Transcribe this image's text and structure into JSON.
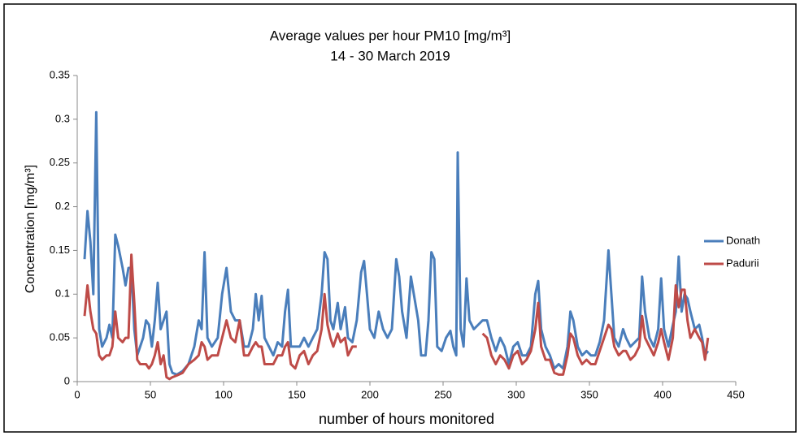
{
  "chart_data": {
    "type": "line",
    "title": "Average values per hour PM10 [mg/m³]",
    "subtitle": "14 - 30 March 2019",
    "x_label": "number of hours monitored",
    "y_label": "Concentration [mg/m³]",
    "xlim": [
      0,
      450
    ],
    "xticks": [
      0,
      50,
      100,
      150,
      200,
      250,
      300,
      350,
      400,
      450
    ],
    "ylim": [
      0,
      0.35
    ],
    "yticks": [
      0,
      0.05,
      0.1,
      0.15,
      0.2,
      0.25,
      0.3,
      0.35
    ],
    "legend": "right",
    "grid": false,
    "x": [
      5,
      7,
      9,
      11,
      13,
      15,
      17,
      20,
      22,
      24,
      26,
      28,
      31,
      33,
      35,
      37,
      39,
      41,
      43,
      45,
      47,
      49,
      51,
      53,
      55,
      57,
      59,
      61,
      63,
      65,
      68,
      72,
      76,
      80,
      83,
      85,
      87,
      89,
      92,
      96,
      99,
      102,
      105,
      108,
      111,
      114,
      117,
      120,
      122,
      124,
      126,
      128,
      131,
      134,
      137,
      140,
      142,
      144,
      146,
      149,
      152,
      155,
      158,
      161,
      164,
      167,
      169,
      171,
      173,
      175,
      178,
      180,
      183,
      185,
      188,
      191,
      194,
      196,
      198,
      200,
      203,
      206,
      209,
      212,
      215,
      218,
      220,
      222,
      225,
      228,
      230,
      233,
      235,
      238,
      240,
      242,
      244,
      246,
      249,
      252,
      255,
      257,
      259,
      260,
      262,
      264,
      266,
      268,
      271,
      274,
      277,
      280,
      283,
      286,
      289,
      292,
      295,
      298,
      301,
      304,
      307,
      310,
      313,
      315,
      317,
      320,
      323,
      326,
      329,
      332,
      335,
      337,
      339,
      342,
      345,
      348,
      351,
      354,
      357,
      360,
      363,
      365,
      367,
      370,
      373,
      375,
      378,
      381,
      384,
      386,
      388,
      391,
      394,
      397,
      399,
      401,
      404,
      407,
      409,
      411,
      413,
      415,
      417,
      419,
      422,
      425,
      427,
      429,
      431
    ],
    "series": [
      {
        "name": "Donath",
        "color": "#4a7ebb",
        "values": [
          0.14,
          0.195,
          0.16,
          0.1,
          0.308,
          0.06,
          0.04,
          0.05,
          0.065,
          0.05,
          0.168,
          0.155,
          0.13,
          0.11,
          0.13,
          0.13,
          0.06,
          0.03,
          0.04,
          0.05,
          0.07,
          0.065,
          0.04,
          0.07,
          0.113,
          0.06,
          0.07,
          0.08,
          0.02,
          0.01,
          0.008,
          0.012,
          0.02,
          0.04,
          0.07,
          0.06,
          0.148,
          0.05,
          0.04,
          0.05,
          0.1,
          0.13,
          0.08,
          0.07,
          0.07,
          0.04,
          0.04,
          0.06,
          0.1,
          0.07,
          0.098,
          0.05,
          0.04,
          0.03,
          0.045,
          0.04,
          0.08,
          0.105,
          0.04,
          0.04,
          0.04,
          0.05,
          0.04,
          0.05,
          0.06,
          0.1,
          0.148,
          0.14,
          0.07,
          0.06,
          0.09,
          0.06,
          0.085,
          0.05,
          0.045,
          0.07,
          0.125,
          0.138,
          0.1,
          0.06,
          0.05,
          0.08,
          0.06,
          0.05,
          0.06,
          0.14,
          0.12,
          0.08,
          0.05,
          0.12,
          0.1,
          0.07,
          0.03,
          0.03,
          0.07,
          0.148,
          0.14,
          0.04,
          0.035,
          0.05,
          0.058,
          0.04,
          0.03,
          0.262,
          0.06,
          0.04,
          0.118,
          0.07,
          0.06,
          0.065,
          0.07,
          0.07,
          0.05,
          0.035,
          0.05,
          0.04,
          0.02,
          0.04,
          0.045,
          0.03,
          0.03,
          0.04,
          0.1,
          0.115,
          0.06,
          0.04,
          0.03,
          0.015,
          0.02,
          0.015,
          0.04,
          0.08,
          0.07,
          0.04,
          0.03,
          0.035,
          0.03,
          0.03,
          0.045,
          0.07,
          0.15,
          0.1,
          0.05,
          0.04,
          0.06,
          0.05,
          0.04,
          0.045,
          0.05,
          0.12,
          0.08,
          0.05,
          0.04,
          0.06,
          0.118,
          0.06,
          0.04,
          0.065,
          0.08,
          0.143,
          0.08,
          0.1,
          0.095,
          0.08,
          0.06,
          0.065,
          0.05,
          0.03,
          0.035
        ]
      },
      {
        "name": "Padurii",
        "color": "#be4b48",
        "values": [
          0.075,
          0.11,
          0.08,
          0.06,
          0.055,
          0.03,
          0.025,
          0.03,
          0.03,
          0.04,
          0.08,
          0.05,
          0.045,
          0.05,
          0.05,
          0.145,
          0.09,
          0.025,
          0.02,
          0.02,
          0.02,
          0.015,
          0.02,
          0.03,
          0.045,
          0.02,
          0.03,
          0.005,
          0.003,
          0.005,
          0.007,
          0.01,
          0.02,
          0.025,
          0.03,
          0.045,
          0.04,
          0.025,
          0.03,
          0.03,
          0.05,
          0.07,
          0.05,
          0.045,
          0.07,
          0.03,
          0.03,
          0.04,
          0.045,
          0.04,
          0.04,
          0.02,
          0.02,
          0.02,
          0.03,
          0.03,
          0.04,
          0.045,
          0.02,
          0.015,
          0.03,
          0.035,
          0.02,
          0.03,
          0.035,
          0.06,
          0.1,
          0.065,
          0.05,
          0.04,
          0.055,
          0.045,
          0.05,
          0.03,
          0.04,
          0.04,
          null,
          null,
          null,
          null,
          null,
          null,
          null,
          null,
          null,
          null,
          null,
          null,
          null,
          null,
          null,
          null,
          null,
          null,
          null,
          null,
          null,
          null,
          null,
          null,
          null,
          null,
          null,
          null,
          null,
          null,
          null,
          null,
          null,
          null,
          0.055,
          0.05,
          0.03,
          0.02,
          0.03,
          0.025,
          0.015,
          0.03,
          0.035,
          0.02,
          0.025,
          0.035,
          0.06,
          0.09,
          0.04,
          0.025,
          0.025,
          0.01,
          0.008,
          0.008,
          0.03,
          0.055,
          0.05,
          0.03,
          0.02,
          0.025,
          0.02,
          0.02,
          0.035,
          0.05,
          0.065,
          0.06,
          0.04,
          0.03,
          0.035,
          0.035,
          0.025,
          0.03,
          0.04,
          0.075,
          0.05,
          0.04,
          0.03,
          0.045,
          0.06,
          0.045,
          0.025,
          0.05,
          0.11,
          0.085,
          0.105,
          0.105,
          0.07,
          0.05,
          0.06,
          0.05,
          0.045,
          0.025,
          0.05
        ]
      }
    ]
  }
}
